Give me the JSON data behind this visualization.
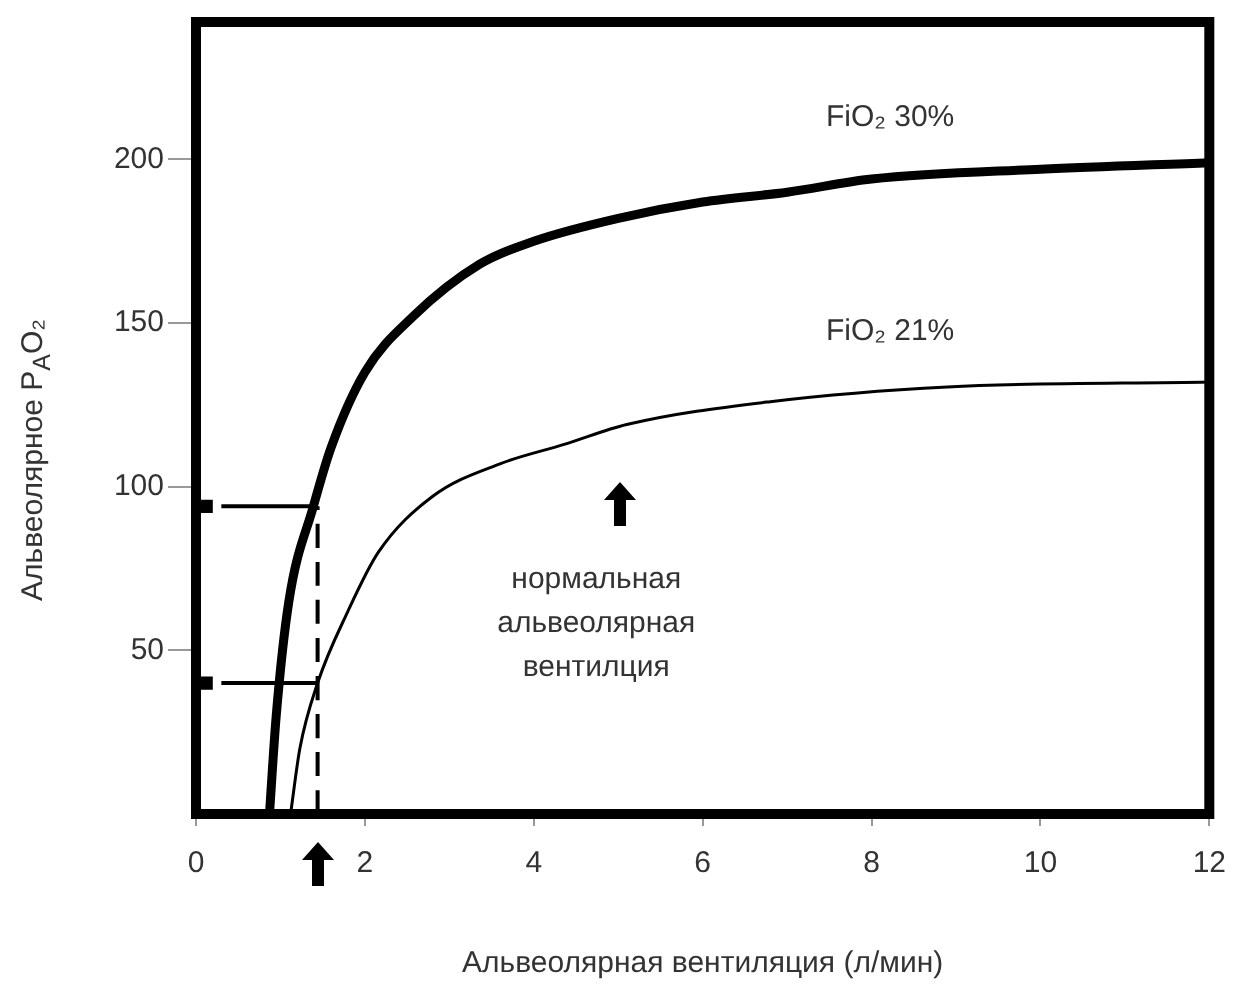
{
  "chart_data": {
    "type": "line",
    "xlabel": "Альвеолярная вентиляция (л/мин)",
    "ylabel": "Альвеолярное P$_{A}$O₂",
    "xlim": [
      0,
      12
    ],
    "xticks": [
      0,
      2,
      4,
      6,
      8,
      10,
      12
    ],
    "ylim": [
      0,
      242
    ],
    "yticks": [
      50,
      100,
      150,
      200
    ],
    "grid": false,
    "legend": false,
    "marker": "none",
    "line_style": "solid",
    "series": [
      {
        "name": "FiO₂ 30%",
        "color": "#000000",
        "x": [
          0.87,
          0.95,
          1.1,
          1.39,
          1.6,
          2,
          2.57,
          3.36,
          4,
          5,
          6,
          7,
          8,
          10,
          12
        ],
        "values": [
          0,
          30,
          65,
          94,
          112,
          135,
          152,
          168,
          175,
          182,
          187,
          190,
          194,
          197,
          199
        ]
      },
      {
        "name": "FiO₂ 21%",
        "color": "#000000",
        "x": [
          1.12,
          1.23,
          1.44,
          1.8,
          2.16,
          2.8,
          3.6,
          4.37,
          5.1,
          6.8,
          8.9,
          12
        ],
        "values": [
          0,
          20,
          40,
          62,
          80,
          97,
          107,
          113,
          119,
          126,
          130.5,
          132
        ]
      },
      {
        "type": "line",
        "color": "#000000",
        "line_style": "dashed",
        "x": [
          1.44,
          1.44
        ],
        "values": [
          0,
          94
        ]
      },
      {
        "type": "line",
        "color": "#000000",
        "x": [
          0.3,
          1.44
        ],
        "values": [
          94,
          94
        ]
      },
      {
        "type": "line",
        "color": "#000000",
        "x": [
          0.3,
          1.44
        ],
        "values": [
          40,
          40
        ]
      },
      {
        "type": "scatter",
        "color": "#000000",
        "marker": "square",
        "x": [
          0.12,
          0.12
        ],
        "values": [
          94,
          40
        ]
      }
    ],
    "annotations": [
      "нормальная альвеолярная вентилция"
    ]
  }
}
